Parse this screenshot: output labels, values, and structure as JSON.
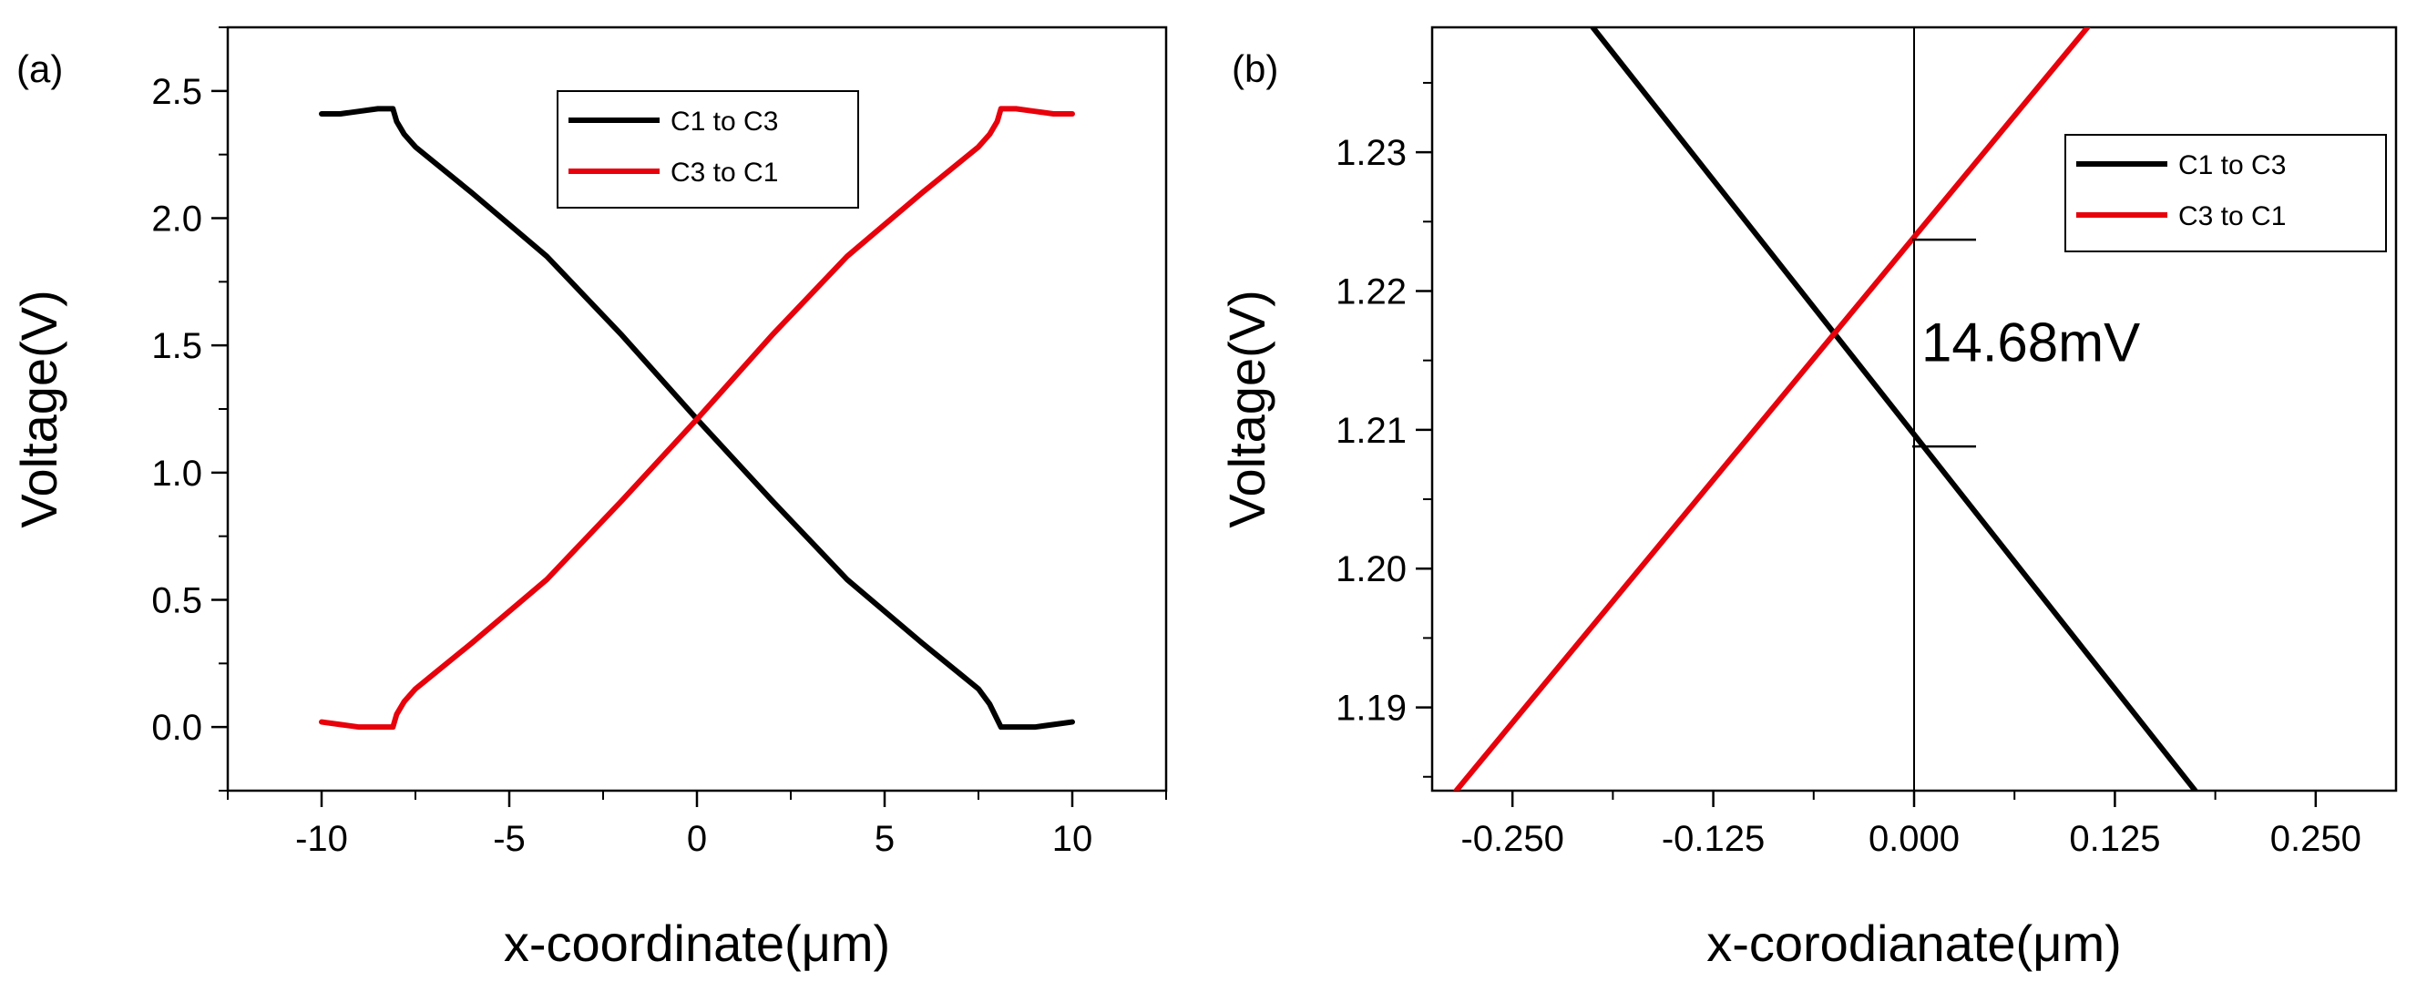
{
  "chart_data": [
    {
      "type": "line",
      "panel_label": "(a)",
      "xlabel": "x-coordinate(μm)",
      "ylabel": "Voltage(V)",
      "xlim": [
        -12.5,
        12.5
      ],
      "ylim": [
        -0.25,
        2.75
      ],
      "xticks": [
        -10,
        -5,
        0,
        5,
        10
      ],
      "xtick_labels": [
        "-10",
        "-5",
        "0",
        "5",
        "10"
      ],
      "yticks": [
        0.0,
        0.5,
        1.0,
        1.5,
        2.0,
        2.5
      ],
      "ytick_labels": [
        "0.0",
        "0.5",
        "1.0",
        "1.5",
        "2.0",
        "2.5"
      ],
      "grid": false,
      "legend_position": "top-center",
      "series": [
        {
          "name": "C1 to C3",
          "color": "#000000",
          "x": [
            -10,
            -9.5,
            -9,
            -8.5,
            -8.1,
            -8,
            -7.8,
            -7.5,
            -7,
            -6,
            -4,
            -2,
            0,
            2,
            4,
            6,
            7,
            7.5,
            7.8,
            8,
            8.1,
            8.5,
            9,
            9.5,
            10
          ],
          "y": [
            2.41,
            2.41,
            2.42,
            2.43,
            2.43,
            2.38,
            2.33,
            2.28,
            2.22,
            2.1,
            1.85,
            1.54,
            1.21,
            0.89,
            0.58,
            0.33,
            0.21,
            0.15,
            0.09,
            0.03,
            0.0,
            0.0,
            0.0,
            0.01,
            0.02
          ]
        },
        {
          "name": "C3 to C1",
          "color": "#e8000b",
          "x": [
            -10,
            -9.5,
            -9,
            -8.5,
            -8.1,
            -8,
            -7.8,
            -7.5,
            -7,
            -6,
            -4,
            -2,
            0,
            2,
            4,
            6,
            7,
            7.5,
            7.8,
            8,
            8.1,
            8.5,
            9,
            9.5,
            10
          ],
          "y": [
            0.02,
            0.01,
            0.0,
            0.0,
            0.0,
            0.05,
            0.1,
            0.15,
            0.21,
            0.33,
            0.58,
            0.89,
            1.21,
            1.54,
            1.85,
            2.1,
            2.22,
            2.28,
            2.33,
            2.38,
            2.43,
            2.43,
            2.42,
            2.41,
            2.41
          ]
        }
      ]
    },
    {
      "type": "line",
      "panel_label": "(b)",
      "xlabel": "x-corodianate(μm)",
      "ylabel": "Voltage(V)",
      "xlim": [
        -0.3,
        0.3
      ],
      "ylim": [
        1.184,
        1.239
      ],
      "xticks": [
        -0.25,
        -0.125,
        0.0,
        0.125,
        0.25
      ],
      "xtick_labels": [
        "-0.250",
        "-0.125",
        "0.000",
        "0.125",
        "0.250"
      ],
      "yticks": [
        1.19,
        1.2,
        1.21,
        1.22,
        1.23
      ],
      "ytick_labels": [
        "1.19",
        "1.20",
        "1.21",
        "1.22",
        "1.23"
      ],
      "grid": false,
      "legend_position": "top-right",
      "series": [
        {
          "name": "C1 to C3",
          "color": "#000000",
          "x": [
            -0.2,
            0.175
          ],
          "y": [
            1.239,
            1.184
          ]
        },
        {
          "name": "C3 to C1",
          "color": "#e8000b",
          "x": [
            -0.285,
            0.108
          ],
          "y": [
            1.184,
            1.239
          ]
        }
      ],
      "reference_line_x": 0.0,
      "annotation": {
        "text": "14.68mV",
        "x": 0.0,
        "y_upper": 1.2237,
        "y_lower": 1.2088
      }
    }
  ]
}
